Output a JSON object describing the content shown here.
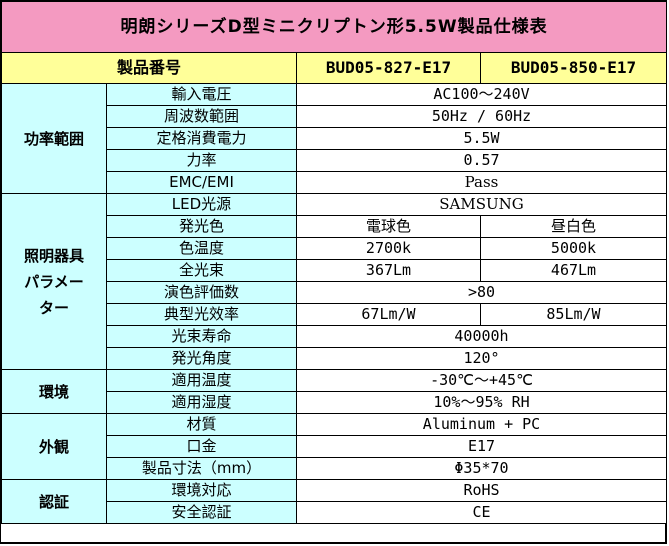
{
  "title": "明朗シリーズD型ミニクリプトン形5.5W製品仕様表",
  "header": {
    "label": "製品番号",
    "models": [
      "BUD05-827-E17",
      "BUD05-850-E17"
    ]
  },
  "sections": {
    "power": {
      "category": "功率範囲",
      "rows": [
        {
          "label": "輸入電圧",
          "value": "AC100～240V"
        },
        {
          "label": "周波数範囲",
          "value": "50Hz / 60Hz"
        },
        {
          "label": "定格消費電力",
          "value": "5.5W"
        },
        {
          "label": "力率",
          "value": "0.57"
        },
        {
          "label": "EMC/EMI",
          "value": "Pass"
        }
      ]
    },
    "lighting": {
      "category": "照明器具パラメーター",
      "category_lines": [
        "照明器具",
        "パラメー",
        "ター"
      ],
      "rows": [
        {
          "label": "LED光源",
          "value": "SAMSUNG"
        },
        {
          "label": "発光色",
          "values": [
            "電球色",
            "昼白色"
          ]
        },
        {
          "label": "色温度",
          "values": [
            "2700k",
            "5000k"
          ]
        },
        {
          "label": "全光束",
          "values": [
            "367Lm",
            "467Lm"
          ]
        },
        {
          "label": "演色評価数",
          "value": ">80"
        },
        {
          "label": "典型光效率",
          "values": [
            "67Lm/W",
            "85Lm/W"
          ]
        },
        {
          "label": "光束寿命",
          "value": "40000h"
        },
        {
          "label": "発光角度",
          "value": "120°"
        }
      ]
    },
    "environment": {
      "category": "環境",
      "rows": [
        {
          "label": "適用温度",
          "value": "-30℃～+45℃"
        },
        {
          "label": "適用湿度",
          "value": "10%～95% RH"
        }
      ]
    },
    "appearance": {
      "category": "外観",
      "rows": [
        {
          "label": "材質",
          "value": "Aluminum + PC"
        },
        {
          "label": "口金",
          "value": "E17"
        },
        {
          "label": "製品寸法（mm）",
          "value": "Φ35*70"
        }
      ]
    },
    "certification": {
      "category": "認証",
      "rows": [
        {
          "label": "環境対応",
          "value": "RoHS"
        },
        {
          "label": "安全認証",
          "value": "CE"
        }
      ]
    }
  }
}
